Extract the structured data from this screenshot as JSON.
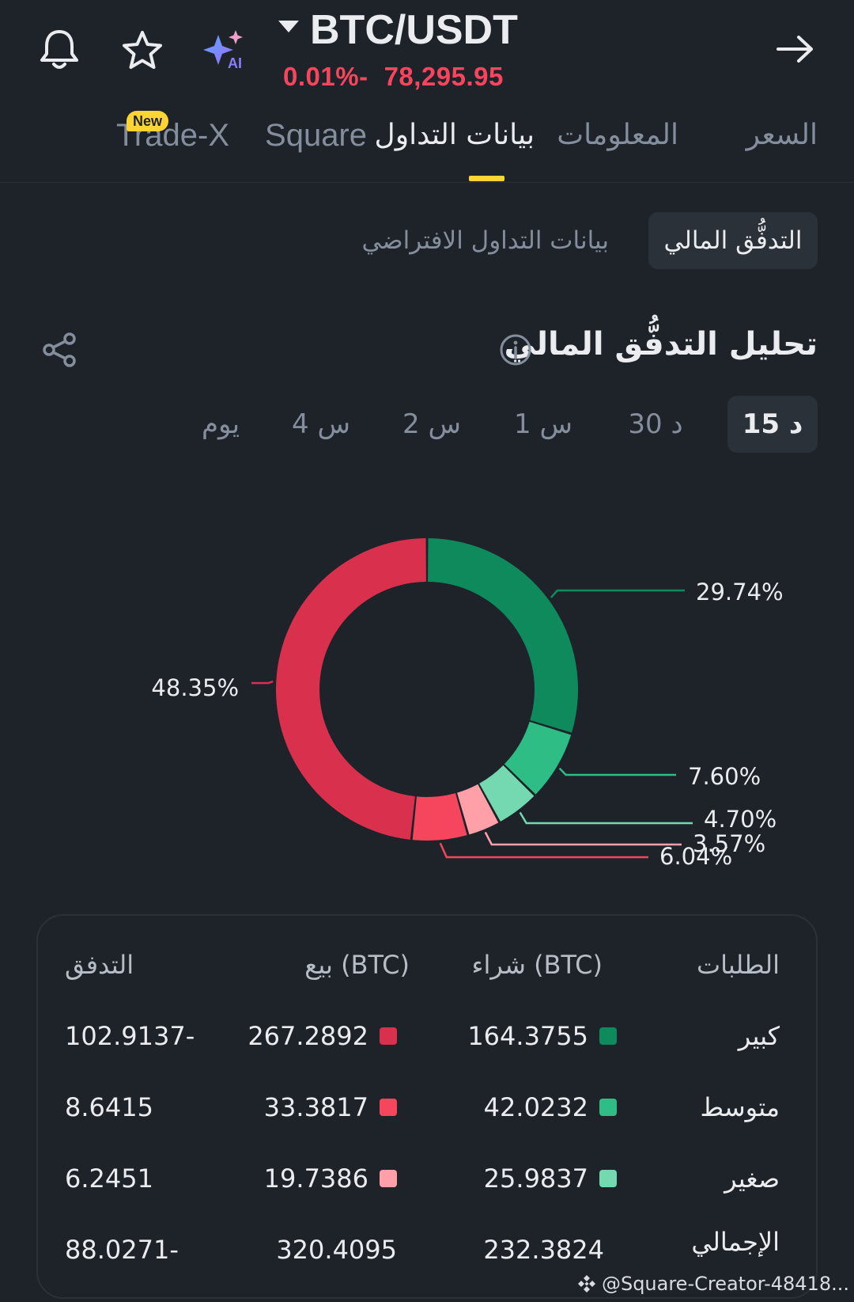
{
  "header": {
    "pair": "BTC/USDT",
    "change": "0.01%-",
    "price": "78,295.95",
    "ai_label": "AI"
  },
  "tabs": [
    {
      "label": "السعر"
    },
    {
      "label": "المعلومات"
    },
    {
      "label": "بيانات التداول",
      "active": true
    },
    {
      "label": "Square"
    },
    {
      "label": "Trade-X",
      "badge": "New"
    }
  ],
  "subtabs": [
    {
      "label": "التدفُّق المالي",
      "active": true
    },
    {
      "label": "بيانات التداول الافتراضي"
    }
  ],
  "section": {
    "title": "تحليل التدفُّق المالي"
  },
  "timeframes": [
    {
      "label": "15 د",
      "active": true
    },
    {
      "label": "30 د"
    },
    {
      "label": "1 س"
    },
    {
      "label": "2 س"
    },
    {
      "label": "4 س"
    },
    {
      "label": "يوم"
    }
  ],
  "chart_data": {
    "type": "pie",
    "style": "donut",
    "slices": [
      {
        "label": "29.74%",
        "value": 29.74,
        "color": "#0e8a5c"
      },
      {
        "label": "7.60%",
        "value": 7.6,
        "color": "#2ebd85"
      },
      {
        "label": "4.70%",
        "value": 4.7,
        "color": "#74d9b0"
      },
      {
        "label": "3.57%",
        "value": 3.57,
        "color": "#ff9fa8"
      },
      {
        "label": "6.04%",
        "value": 6.04,
        "color": "#f6465d"
      },
      {
        "label": "48.35%",
        "value": 48.35,
        "color": "#d9304e"
      }
    ]
  },
  "table": {
    "headers": {
      "type": "الطلبات",
      "buy": "شراء (BTC)",
      "sell": "بيع (BTC)",
      "flow": "التدفق"
    },
    "rows": [
      {
        "type": "كبير",
        "buy": "164.3755",
        "sell": "267.2892",
        "flow": "102.9137-",
        "buy_color": "#0e8a5c",
        "sell_color": "#d9304e"
      },
      {
        "type": "متوسط",
        "buy": "42.0232",
        "sell": "33.3817",
        "flow": "8.6415",
        "buy_color": "#2ebd85",
        "sell_color": "#f6465d"
      },
      {
        "type": "صغير",
        "buy": "25.9837",
        "sell": "19.7386",
        "flow": "6.2451",
        "buy_color": "#74d9b0",
        "sell_color": "#ff9fa8"
      }
    ],
    "total": {
      "type": "الإجمالي",
      "buy": "232.3824",
      "sell": "320.4095",
      "flow": "88.0271-"
    }
  },
  "watermark": "@Square-Creator-48418..."
}
